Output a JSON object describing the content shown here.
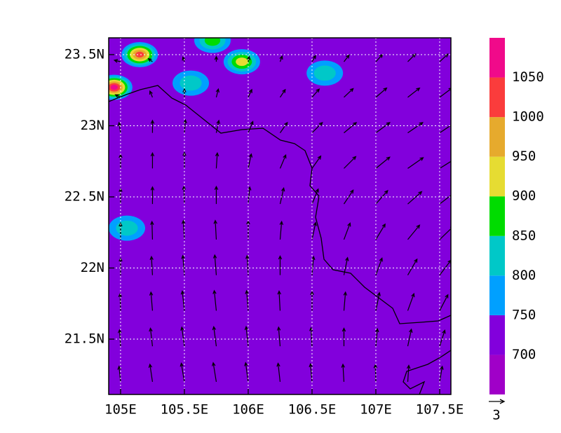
{
  "chart_data": {
    "type": "vector_map",
    "xlim": [
      104.907,
      107.588
    ],
    "ylim": [
      21.111,
      23.618
    ],
    "xticks": [
      {
        "value": 105,
        "label": "105E"
      },
      {
        "value": 105.5,
        "label": "105.5E"
      },
      {
        "value": 106,
        "label": "106E"
      },
      {
        "value": 106.5,
        "label": "106.5E"
      },
      {
        "value": 107,
        "label": "107E"
      },
      {
        "value": 107.5,
        "label": "107.5E"
      }
    ],
    "yticks": [
      {
        "value": 21.5,
        "label": "21.5N"
      },
      {
        "value": 22,
        "label": "22N"
      },
      {
        "value": 22.5,
        "label": "22.5N"
      },
      {
        "value": 23,
        "label": "23N"
      },
      {
        "value": 23.5,
        "label": "23.5N"
      }
    ],
    "grid": true,
    "levels": [
      700,
      750,
      800,
      850,
      900,
      950,
      1000,
      1050
    ],
    "colors": [
      "#a000c8",
      "#8200dc",
      "#00a0ff",
      "#00c8c8",
      "#00dc00",
      "#e6dc32",
      "#e6aa2d",
      "#fa3c3c",
      "#f00a8a"
    ],
    "background_level": 720,
    "patches": [
      {
        "lon": 105.15,
        "lat": 23.5,
        "level": 1000
      },
      {
        "lon": 104.95,
        "lat": 23.27,
        "level": 1050
      },
      {
        "lon": 105.55,
        "lat": 23.3,
        "level": 800
      },
      {
        "lon": 105.95,
        "lat": 23.45,
        "level": 900
      },
      {
        "lon": 105.72,
        "lat": 23.6,
        "level": 850
      },
      {
        "lon": 106.6,
        "lat": 23.37,
        "level": 800
      },
      {
        "lon": 105.05,
        "lat": 22.28,
        "level": 800
      }
    ],
    "vectors": {
      "lon": [
        105,
        105.25,
        105.5,
        105.75,
        106,
        106.25,
        106.5,
        106.75,
        107,
        107.25,
        107.5
      ],
      "lat": [
        21.2,
        21.45,
        21.7,
        21.95,
        22.2,
        22.45,
        22.7,
        22.95,
        23.2,
        23.45
      ],
      "u": [
        [
          -0.3,
          -0.5,
          -0.6,
          -0.6,
          -0.5,
          -0.4,
          -0.3,
          -0.2,
          -0.1,
          0.2,
          0.5
        ],
        [
          -0.2,
          -0.4,
          -0.5,
          -0.5,
          -0.4,
          -0.3,
          -0.2,
          0,
          0.3,
          0.7,
          1.0
        ],
        [
          -0.1,
          -0.3,
          -0.4,
          -0.4,
          -0.3,
          -0.2,
          0,
          0.3,
          0.7,
          1.2,
          1.6
        ],
        [
          0,
          -0.2,
          -0.3,
          -0.3,
          -0.2,
          0,
          0.3,
          0.7,
          1.2,
          1.8,
          2.2
        ],
        [
          0,
          -0.1,
          -0.2,
          -0.2,
          0,
          0.3,
          0.7,
          1.2,
          1.8,
          2.3,
          2.7
        ],
        [
          0,
          0,
          -0.1,
          0,
          0.3,
          0.7,
          1.2,
          1.8,
          2.3,
          2.7,
          3.0
        ],
        [
          0,
          0,
          0,
          0.2,
          0.6,
          1.1,
          1.7,
          2.3,
          2.7,
          3.0,
          3.2
        ],
        [
          -0.3,
          0,
          0.2,
          0.5,
          0.9,
          1.4,
          2.0,
          2.4,
          2.7,
          2.9,
          3.0
        ],
        [
          -1.0,
          -0.5,
          0,
          0.4,
          0.7,
          1.0,
          1.4,
          1.8,
          2.1,
          2.3,
          2.4
        ],
        [
          -1.2,
          -0.8,
          -0.3,
          0,
          0.2,
          0.4,
          0.7,
          1.0,
          1.3,
          1.5,
          1.6
        ]
      ],
      "v": [
        [
          3.0,
          3.4,
          3.6,
          3.7,
          3.7,
          3.6,
          3.5,
          3.4,
          3.3,
          3.2,
          3.0
        ],
        [
          3.2,
          3.5,
          3.7,
          3.8,
          3.8,
          3.7,
          3.6,
          3.5,
          3.4,
          3.3,
          3.1
        ],
        [
          3.3,
          3.6,
          3.8,
          3.9,
          3.9,
          3.8,
          3.7,
          3.6,
          3.5,
          3.3,
          3.1
        ],
        [
          3.3,
          3.6,
          3.8,
          3.9,
          3.8,
          3.7,
          3.6,
          3.4,
          3.3,
          3.1,
          2.9
        ],
        [
          3.2,
          3.5,
          3.7,
          3.7,
          3.6,
          3.5,
          3.3,
          3.2,
          3.0,
          2.8,
          2.6
        ],
        [
          3.0,
          3.3,
          3.4,
          3.4,
          3.3,
          3.1,
          2.9,
          2.7,
          2.6,
          2.4,
          2.3
        ],
        [
          2.7,
          3.0,
          3.1,
          3.0,
          2.8,
          2.6,
          2.4,
          2.3,
          2.2,
          2.1,
          2.0
        ],
        [
          2.0,
          2.4,
          2.5,
          2.4,
          2.2,
          2.0,
          2.0,
          2.0,
          2.0,
          2.0,
          2.0
        ],
        [
          0.5,
          1.2,
          1.6,
          1.6,
          1.5,
          1.5,
          1.6,
          1.7,
          1.8,
          1.8,
          1.8
        ],
        [
          0.3,
          0.6,
          0.9,
          1.0,
          1.0,
          1.1,
          1.2,
          1.3,
          1.4,
          1.5,
          1.5
        ]
      ]
    },
    "reference_vector": 3
  }
}
